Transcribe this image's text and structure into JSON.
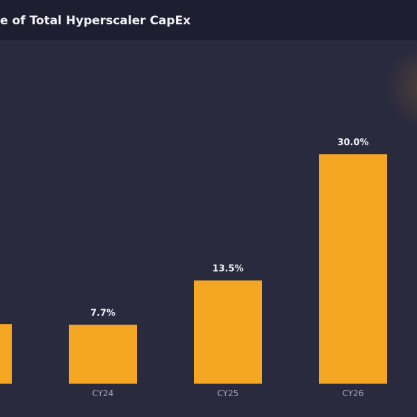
{
  "chart_data": {
    "type": "bar",
    "title": "e of Total Hyperscaler CapEx",
    "categories": [
      null,
      "CY24",
      "CY25",
      "CY26"
    ],
    "values": [
      7.8,
      7.7,
      13.5,
      30.0
    ],
    "value_labels": [
      null,
      "7.7%",
      "13.5%",
      "30.0%"
    ],
    "color": "#f5a623",
    "ylim": [
      0,
      50
    ]
  }
}
